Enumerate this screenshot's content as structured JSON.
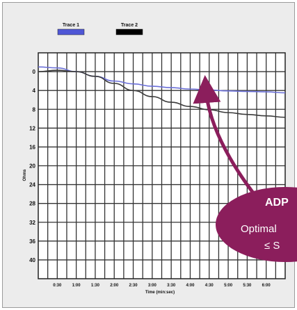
{
  "chart_data": {
    "type": "line",
    "xlabel": "Time (min:sec)",
    "ylabel": "Ohms",
    "grid": true,
    "y_inverted": true,
    "xlim": [
      0,
      390
    ],
    "ylim": [
      -4,
      44
    ],
    "x_ticks": [
      30,
      60,
      90,
      120,
      150,
      180,
      210,
      240,
      270,
      300,
      330,
      360
    ],
    "x_tick_labels": [
      "0:30",
      "1:00",
      "1:30",
      "2:00",
      "2:30",
      "3:00",
      "3:30",
      "4:00",
      "4:30",
      "5:00",
      "5:30",
      "6:00"
    ],
    "y_ticks": [
      0,
      4,
      8,
      12,
      16,
      20,
      24,
      28,
      32,
      36,
      40
    ],
    "y_tick_labels": [
      "0",
      "4",
      "8",
      "12",
      "16",
      "20",
      "24",
      "28",
      "32",
      "36",
      "40"
    ],
    "legend_position": "top-left",
    "series": [
      {
        "name": "Trace 1",
        "color": "#6a6fd8",
        "x": [
          0,
          30,
          60,
          90,
          120,
          150,
          180,
          210,
          240,
          270,
          300,
          330,
          360,
          390
        ],
        "y": [
          -1,
          -0.8,
          0,
          1,
          2,
          2.6,
          3.1,
          3.4,
          3.7,
          3.9,
          4.1,
          4.2,
          4.3,
          4.5
        ]
      },
      {
        "name": "Trace 2",
        "color": "#3a3a3a",
        "x": [
          0,
          30,
          60,
          90,
          120,
          150,
          180,
          210,
          240,
          270,
          300,
          330,
          360,
          390
        ],
        "y": [
          0,
          -0.3,
          0,
          1,
          2.5,
          4,
          5.3,
          6.5,
          7.4,
          8.1,
          8.7,
          9.1,
          9.4,
          9.7
        ]
      }
    ]
  },
  "callout": {
    "title": "ADP",
    "line1": "Optimal",
    "line2": "≤ S",
    "color": "#8b1e5c"
  }
}
